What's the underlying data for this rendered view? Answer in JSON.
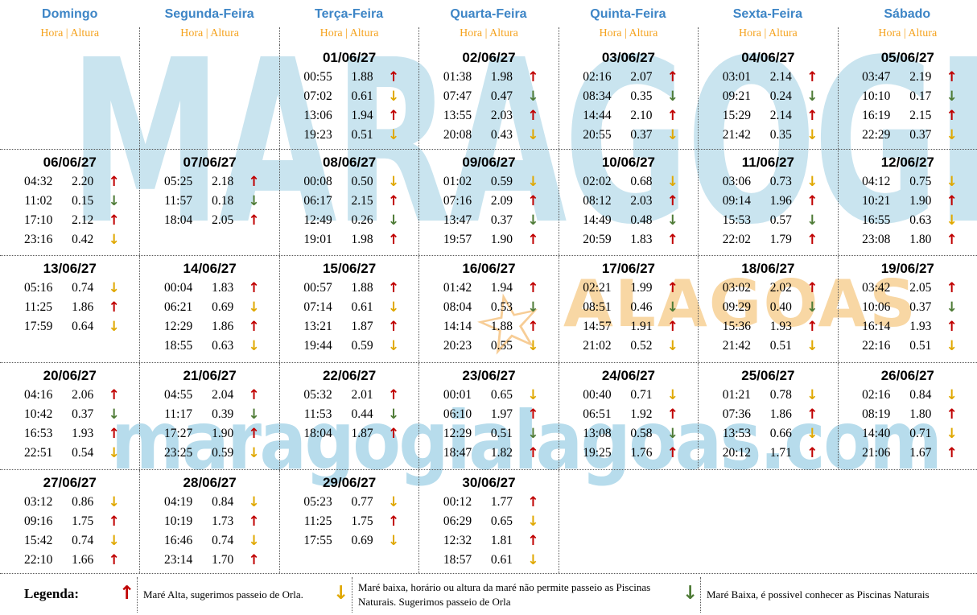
{
  "calendar": {
    "days": [
      "Domingo",
      "Segunda-Feira",
      "Terça-Feira",
      "Quarta-Feira",
      "Quinta-Feira",
      "Sexta-Feira",
      "Sábado"
    ],
    "subheader": "Hora | Altura",
    "weeks": [
      [
        {
          "date": "",
          "tides": []
        },
        {
          "date": "",
          "tides": []
        },
        {
          "date": "01/06/27",
          "tides": [
            {
              "time": "00:55",
              "height": "1.88",
              "arrow": "up-red"
            },
            {
              "time": "07:02",
              "height": "0.61",
              "arrow": "down-yellow"
            },
            {
              "time": "13:06",
              "height": "1.94",
              "arrow": "up-red"
            },
            {
              "time": "19:23",
              "height": "0.51",
              "arrow": "down-yellow"
            }
          ]
        },
        {
          "date": "02/06/27",
          "tides": [
            {
              "time": "01:38",
              "height": "1.98",
              "arrow": "up-red"
            },
            {
              "time": "07:47",
              "height": "0.47",
              "arrow": "down-green"
            },
            {
              "time": "13:55",
              "height": "2.03",
              "arrow": "up-red"
            },
            {
              "time": "20:08",
              "height": "0.43",
              "arrow": "down-yellow"
            }
          ]
        },
        {
          "date": "03/06/27",
          "tides": [
            {
              "time": "02:16",
              "height": "2.07",
              "arrow": "up-red"
            },
            {
              "time": "08:34",
              "height": "0.35",
              "arrow": "down-green"
            },
            {
              "time": "14:44",
              "height": "2.10",
              "arrow": "up-red"
            },
            {
              "time": "20:55",
              "height": "0.37",
              "arrow": "down-yellow"
            }
          ]
        },
        {
          "date": "04/06/27",
          "tides": [
            {
              "time": "03:01",
              "height": "2.14",
              "arrow": "up-red"
            },
            {
              "time": "09:21",
              "height": "0.24",
              "arrow": "down-green"
            },
            {
              "time": "15:29",
              "height": "2.14",
              "arrow": "up-red"
            },
            {
              "time": "21:42",
              "height": "0.35",
              "arrow": "down-yellow"
            }
          ]
        },
        {
          "date": "05/06/27",
          "tides": [
            {
              "time": "03:47",
              "height": "2.19",
              "arrow": "up-red"
            },
            {
              "time": "10:10",
              "height": "0.17",
              "arrow": "down-green"
            },
            {
              "time": "16:19",
              "height": "2.15",
              "arrow": "up-red"
            },
            {
              "time": "22:29",
              "height": "0.37",
              "arrow": "down-yellow"
            }
          ]
        }
      ],
      [
        {
          "date": "06/06/27",
          "tides": [
            {
              "time": "04:32",
              "height": "2.20",
              "arrow": "up-red"
            },
            {
              "time": "11:02",
              "height": "0.15",
              "arrow": "down-green"
            },
            {
              "time": "17:10",
              "height": "2.12",
              "arrow": "up-red"
            },
            {
              "time": "23:16",
              "height": "0.42",
              "arrow": "down-yellow"
            }
          ]
        },
        {
          "date": "07/06/27",
          "tides": [
            {
              "time": "05:25",
              "height": "2.18",
              "arrow": "up-red"
            },
            {
              "time": "11:57",
              "height": "0.18",
              "arrow": "down-green"
            },
            {
              "time": "18:04",
              "height": "2.05",
              "arrow": "up-red"
            }
          ]
        },
        {
          "date": "08/06/27",
          "tides": [
            {
              "time": "00:08",
              "height": "0.50",
              "arrow": "down-yellow"
            },
            {
              "time": "06:17",
              "height": "2.15",
              "arrow": "up-red"
            },
            {
              "time": "12:49",
              "height": "0.26",
              "arrow": "down-green"
            },
            {
              "time": "19:01",
              "height": "1.98",
              "arrow": "up-red"
            }
          ]
        },
        {
          "date": "09/06/27",
          "tides": [
            {
              "time": "01:02",
              "height": "0.59",
              "arrow": "down-yellow"
            },
            {
              "time": "07:16",
              "height": "2.09",
              "arrow": "up-red"
            },
            {
              "time": "13:47",
              "height": "0.37",
              "arrow": "down-green"
            },
            {
              "time": "19:57",
              "height": "1.90",
              "arrow": "up-red"
            }
          ]
        },
        {
          "date": "10/06/27",
          "tides": [
            {
              "time": "02:02",
              "height": "0.68",
              "arrow": "down-yellow"
            },
            {
              "time": "08:12",
              "height": "2.03",
              "arrow": "up-red"
            },
            {
              "time": "14:49",
              "height": "0.48",
              "arrow": "down-green"
            },
            {
              "time": "20:59",
              "height": "1.83",
              "arrow": "up-red"
            }
          ]
        },
        {
          "date": "11/06/27",
          "tides": [
            {
              "time": "03:06",
              "height": "0.73",
              "arrow": "down-yellow"
            },
            {
              "time": "09:14",
              "height": "1.96",
              "arrow": "up-red"
            },
            {
              "time": "15:53",
              "height": "0.57",
              "arrow": "down-green"
            },
            {
              "time": "22:02",
              "height": "1.79",
              "arrow": "up-red"
            }
          ]
        },
        {
          "date": "12/06/27",
          "tides": [
            {
              "time": "04:12",
              "height": "0.75",
              "arrow": "down-yellow"
            },
            {
              "time": "10:21",
              "height": "1.90",
              "arrow": "up-red"
            },
            {
              "time": "16:55",
              "height": "0.63",
              "arrow": "down-yellow"
            },
            {
              "time": "23:08",
              "height": "1.80",
              "arrow": "up-red"
            }
          ]
        }
      ],
      [
        {
          "date": "13/06/27",
          "tides": [
            {
              "time": "05:16",
              "height": "0.74",
              "arrow": "down-yellow"
            },
            {
              "time": "11:25",
              "height": "1.86",
              "arrow": "up-red"
            },
            {
              "time": "17:59",
              "height": "0.64",
              "arrow": "down-yellow"
            }
          ]
        },
        {
          "date": "14/06/27",
          "tides": [
            {
              "time": "00:04",
              "height": "1.83",
              "arrow": "up-red"
            },
            {
              "time": "06:21",
              "height": "0.69",
              "arrow": "down-yellow"
            },
            {
              "time": "12:29",
              "height": "1.86",
              "arrow": "up-red"
            },
            {
              "time": "18:55",
              "height": "0.63",
              "arrow": "down-yellow"
            }
          ]
        },
        {
          "date": "15/06/27",
          "tides": [
            {
              "time": "00:57",
              "height": "1.88",
              "arrow": "up-red"
            },
            {
              "time": "07:14",
              "height": "0.61",
              "arrow": "down-yellow"
            },
            {
              "time": "13:21",
              "height": "1.87",
              "arrow": "up-red"
            },
            {
              "time": "19:44",
              "height": "0.59",
              "arrow": "down-yellow"
            }
          ]
        },
        {
          "date": "16/06/27",
          "tides": [
            {
              "time": "01:42",
              "height": "1.94",
              "arrow": "up-red"
            },
            {
              "time": "08:04",
              "height": "0.53",
              "arrow": "down-green"
            },
            {
              "time": "14:14",
              "height": "1.88",
              "arrow": "up-red"
            },
            {
              "time": "20:23",
              "height": "0.55",
              "arrow": "down-yellow"
            }
          ]
        },
        {
          "date": "17/06/27",
          "tides": [
            {
              "time": "02:21",
              "height": "1.99",
              "arrow": "up-red"
            },
            {
              "time": "08:51",
              "height": "0.46",
              "arrow": "down-green"
            },
            {
              "time": "14:57",
              "height": "1.91",
              "arrow": "up-red"
            },
            {
              "time": "21:02",
              "height": "0.52",
              "arrow": "down-yellow"
            }
          ]
        },
        {
          "date": "18/06/27",
          "tides": [
            {
              "time": "03:02",
              "height": "2.02",
              "arrow": "up-red"
            },
            {
              "time": "09:29",
              "height": "0.40",
              "arrow": "down-green"
            },
            {
              "time": "15:36",
              "height": "1.93",
              "arrow": "up-red"
            },
            {
              "time": "21:42",
              "height": "0.51",
              "arrow": "down-yellow"
            }
          ]
        },
        {
          "date": "19/06/27",
          "tides": [
            {
              "time": "03:42",
              "height": "2.05",
              "arrow": "up-red"
            },
            {
              "time": "10:06",
              "height": "0.37",
              "arrow": "down-green"
            },
            {
              "time": "16:14",
              "height": "1.93",
              "arrow": "up-red"
            },
            {
              "time": "22:16",
              "height": "0.51",
              "arrow": "down-yellow"
            }
          ]
        }
      ],
      [
        {
          "date": "20/06/27",
          "tides": [
            {
              "time": "04:16",
              "height": "2.06",
              "arrow": "up-red"
            },
            {
              "time": "10:42",
              "height": "0.37",
              "arrow": "down-green"
            },
            {
              "time": "16:53",
              "height": "1.93",
              "arrow": "up-red"
            },
            {
              "time": "22:51",
              "height": "0.54",
              "arrow": "down-yellow"
            }
          ]
        },
        {
          "date": "21/06/27",
          "tides": [
            {
              "time": "04:55",
              "height": "2.04",
              "arrow": "up-red"
            },
            {
              "time": "11:17",
              "height": "0.39",
              "arrow": "down-green"
            },
            {
              "time": "17:27",
              "height": "1.90",
              "arrow": "up-red"
            },
            {
              "time": "23:25",
              "height": "0.59",
              "arrow": "down-yellow"
            }
          ]
        },
        {
          "date": "22/06/27",
          "tides": [
            {
              "time": "05:32",
              "height": "2.01",
              "arrow": "up-red"
            },
            {
              "time": "11:53",
              "height": "0.44",
              "arrow": "down-green"
            },
            {
              "time": "18:04",
              "height": "1.87",
              "arrow": "up-red"
            }
          ]
        },
        {
          "date": "23/06/27",
          "tides": [
            {
              "time": "00:01",
              "height": "0.65",
              "arrow": "down-yellow"
            },
            {
              "time": "06:10",
              "height": "1.97",
              "arrow": "up-red"
            },
            {
              "time": "12:29",
              "height": "0.51",
              "arrow": "down-green"
            },
            {
              "time": "18:47",
              "height": "1.82",
              "arrow": "up-red"
            }
          ]
        },
        {
          "date": "24/06/27",
          "tides": [
            {
              "time": "00:40",
              "height": "0.71",
              "arrow": "down-yellow"
            },
            {
              "time": "06:51",
              "height": "1.92",
              "arrow": "up-red"
            },
            {
              "time": "13:08",
              "height": "0.58",
              "arrow": "down-green"
            },
            {
              "time": "19:25",
              "height": "1.76",
              "arrow": "up-red"
            }
          ]
        },
        {
          "date": "25/06/27",
          "tides": [
            {
              "time": "01:21",
              "height": "0.78",
              "arrow": "down-yellow"
            },
            {
              "time": "07:36",
              "height": "1.86",
              "arrow": "up-red"
            },
            {
              "time": "13:53",
              "height": "0.66",
              "arrow": "down-yellow"
            },
            {
              "time": "20:12",
              "height": "1.71",
              "arrow": "up-red"
            }
          ]
        },
        {
          "date": "26/06/27",
          "tides": [
            {
              "time": "02:16",
              "height": "0.84",
              "arrow": "down-yellow"
            },
            {
              "time": "08:19",
              "height": "1.80",
              "arrow": "up-red"
            },
            {
              "time": "14:40",
              "height": "0.71",
              "arrow": "down-yellow"
            },
            {
              "time": "21:06",
              "height": "1.67",
              "arrow": "up-red"
            }
          ]
        }
      ],
      [
        {
          "date": "27/06/27",
          "tides": [
            {
              "time": "03:12",
              "height": "0.86",
              "arrow": "down-yellow"
            },
            {
              "time": "09:16",
              "height": "1.75",
              "arrow": "up-red"
            },
            {
              "time": "15:42",
              "height": "0.74",
              "arrow": "down-yellow"
            },
            {
              "time": "22:10",
              "height": "1.66",
              "arrow": "up-red"
            }
          ]
        },
        {
          "date": "28/06/27",
          "tides": [
            {
              "time": "04:19",
              "height": "0.84",
              "arrow": "down-yellow"
            },
            {
              "time": "10:19",
              "height": "1.73",
              "arrow": "up-red"
            },
            {
              "time": "16:46",
              "height": "0.74",
              "arrow": "down-yellow"
            },
            {
              "time": "23:14",
              "height": "1.70",
              "arrow": "up-red"
            }
          ]
        },
        {
          "date": "29/06/27",
          "tides": [
            {
              "time": "05:23",
              "height": "0.77",
              "arrow": "down-yellow"
            },
            {
              "time": "11:25",
              "height": "1.75",
              "arrow": "up-red"
            },
            {
              "time": "17:55",
              "height": "0.69",
              "arrow": "down-yellow"
            }
          ]
        },
        {
          "date": "30/06/27",
          "tides": [
            {
              "time": "00:12",
              "height": "1.77",
              "arrow": "up-red"
            },
            {
              "time": "06:29",
              "height": "0.65",
              "arrow": "down-yellow"
            },
            {
              "time": "12:32",
              "height": "1.81",
              "arrow": "up-red"
            },
            {
              "time": "18:57",
              "height": "0.61",
              "arrow": "down-yellow"
            }
          ]
        },
        {
          "date": "",
          "tides": []
        },
        {
          "date": "",
          "tides": []
        },
        {
          "date": "",
          "tides": []
        }
      ]
    ]
  },
  "legend": {
    "title": "Legenda:",
    "items": [
      {
        "arrow": "up-red",
        "text": "Maré Alta, sugerimos passeio de Orla."
      },
      {
        "arrow": "down-yellow",
        "text": "Maré baixa, horário ou altura da maré não permite passeio as Piscinas Naturais. Sugerimos passeio de Orla"
      },
      {
        "arrow": "down-green",
        "text": "Maré Baixa, é possivel conhecer as Piscinas Naturais"
      }
    ]
  },
  "watermarks": {
    "top": "MARAGOGI",
    "star_glyph": "☆",
    "middle": "ALAGOAS",
    "bottom": "maragogialagoas.com"
  },
  "colors": {
    "day_header_blue": "#3d85c6",
    "subheader_orange": "#f5a31f",
    "arrow_red": "#c00000",
    "arrow_yellow": "#e0a800",
    "arrow_green": "#4e7b36",
    "watermark_blue": "#c9e4ef",
    "watermark_orange": "#f8d7a4",
    "divider": "#555555"
  }
}
